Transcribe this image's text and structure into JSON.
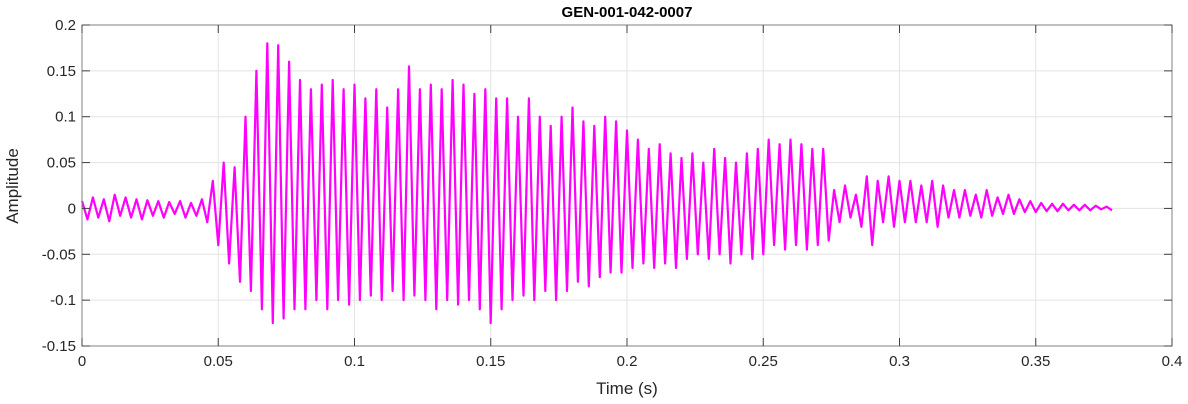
{
  "chart_data": {
    "type": "line",
    "title": "GEN-001-042-0007",
    "xlabel": "Time (s)",
    "ylabel": "Amplitude",
    "xlim": [
      0,
      0.4
    ],
    "ylim": [
      -0.15,
      0.2
    ],
    "xticks": [
      "0",
      "0.05",
      "0.1",
      "0.15",
      "0.2",
      "0.25",
      "0.3",
      "0.35",
      "0.4"
    ],
    "yticks": [
      "-0.15",
      "-0.1",
      "-0.05",
      "0",
      "0.05",
      "0.1",
      "0.15",
      "0.2"
    ],
    "grid": true,
    "line_color": "#ff00ff",
    "series": [
      {
        "x_start": 0,
        "x_step": 0.002,
        "y": [
          0.008,
          -0.012,
          0.012,
          -0.01,
          0.01,
          -0.014,
          0.015,
          -0.008,
          0.012,
          -0.01,
          0.01,
          -0.012,
          0.009,
          -0.008,
          0.008,
          -0.01,
          0.007,
          -0.006,
          0.008,
          -0.01,
          0.006,
          -0.008,
          0.01,
          -0.015,
          0.03,
          -0.04,
          0.05,
          -0.06,
          0.045,
          -0.08,
          0.1,
          -0.09,
          0.15,
          -0.11,
          0.18,
          -0.125,
          0.178,
          -0.12,
          0.16,
          -0.11,
          0.14,
          -0.11,
          0.13,
          -0.1,
          0.135,
          -0.11,
          0.14,
          -0.1,
          0.13,
          -0.105,
          0.135,
          -0.1,
          0.12,
          -0.095,
          0.13,
          -0.1,
          0.11,
          -0.09,
          0.13,
          -0.1,
          0.155,
          -0.095,
          0.13,
          -0.1,
          0.135,
          -0.11,
          0.13,
          -0.1,
          0.14,
          -0.105,
          0.135,
          -0.1,
          0.125,
          -0.11,
          0.13,
          -0.125,
          0.12,
          -0.11,
          0.12,
          -0.1,
          0.1,
          -0.095,
          0.12,
          -0.1,
          0.1,
          -0.09,
          0.09,
          -0.1,
          0.1,
          -0.09,
          0.11,
          -0.08,
          0.095,
          -0.085,
          0.09,
          -0.075,
          0.1,
          -0.07,
          0.095,
          -0.07,
          0.085,
          -0.065,
          0.075,
          -0.06,
          0.065,
          -0.065,
          0.07,
          -0.06,
          0.06,
          -0.065,
          0.055,
          -0.055,
          0.06,
          -0.05,
          0.05,
          -0.055,
          0.065,
          -0.05,
          0.055,
          -0.06,
          0.05,
          -0.05,
          0.06,
          -0.055,
          0.065,
          -0.05,
          0.075,
          -0.04,
          0.07,
          -0.045,
          0.075,
          -0.04,
          0.07,
          -0.045,
          0.065,
          -0.04,
          0.065,
          -0.035,
          0.02,
          -0.015,
          0.025,
          -0.01,
          0.015,
          -0.02,
          0.035,
          -0.04,
          0.03,
          -0.015,
          0.035,
          -0.02,
          0.03,
          -0.015,
          0.03,
          -0.015,
          0.025,
          -0.015,
          0.03,
          -0.02,
          0.025,
          -0.01,
          0.02,
          -0.01,
          0.02,
          -0.008,
          0.015,
          -0.01,
          0.02,
          -0.008,
          0.012,
          -0.006,
          0.015,
          -0.006,
          0.01,
          -0.004,
          0.008,
          -0.004,
          0.006,
          -0.003,
          0.005,
          -0.003,
          0.005,
          -0.002,
          0.004,
          -0.002,
          0.004,
          -0.002,
          0.003,
          -0.001,
          0.002,
          -0.002
        ]
      }
    ]
  }
}
